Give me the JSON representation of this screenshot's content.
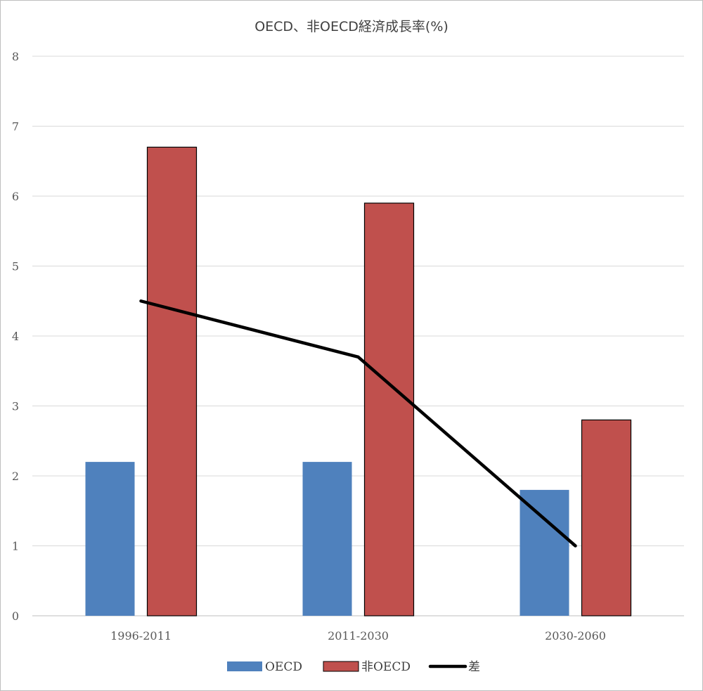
{
  "chart_data": {
    "type": "bar",
    "title": "OECD、非OECD経済成長率(%)",
    "categories": [
      "1996-2011",
      "2011-2030",
      "2030-2060"
    ],
    "ylim": [
      0,
      8
    ],
    "yticks": [
      "0",
      "1",
      "2",
      "3",
      "4",
      "5",
      "6",
      "7",
      "8"
    ],
    "grid": true,
    "legend_position": "bottom",
    "series": [
      {
        "name": "OECD",
        "kind": "bar",
        "color": "#4f81bd",
        "values": [
          2.2,
          2.2,
          1.8
        ]
      },
      {
        "name": "非OECD",
        "kind": "bar",
        "color": "#c0504d",
        "values": [
          6.7,
          5.9,
          2.8
        ]
      },
      {
        "name": "差",
        "kind": "line",
        "color": "#000000",
        "values": [
          4.5,
          3.7,
          1.0
        ]
      }
    ]
  }
}
